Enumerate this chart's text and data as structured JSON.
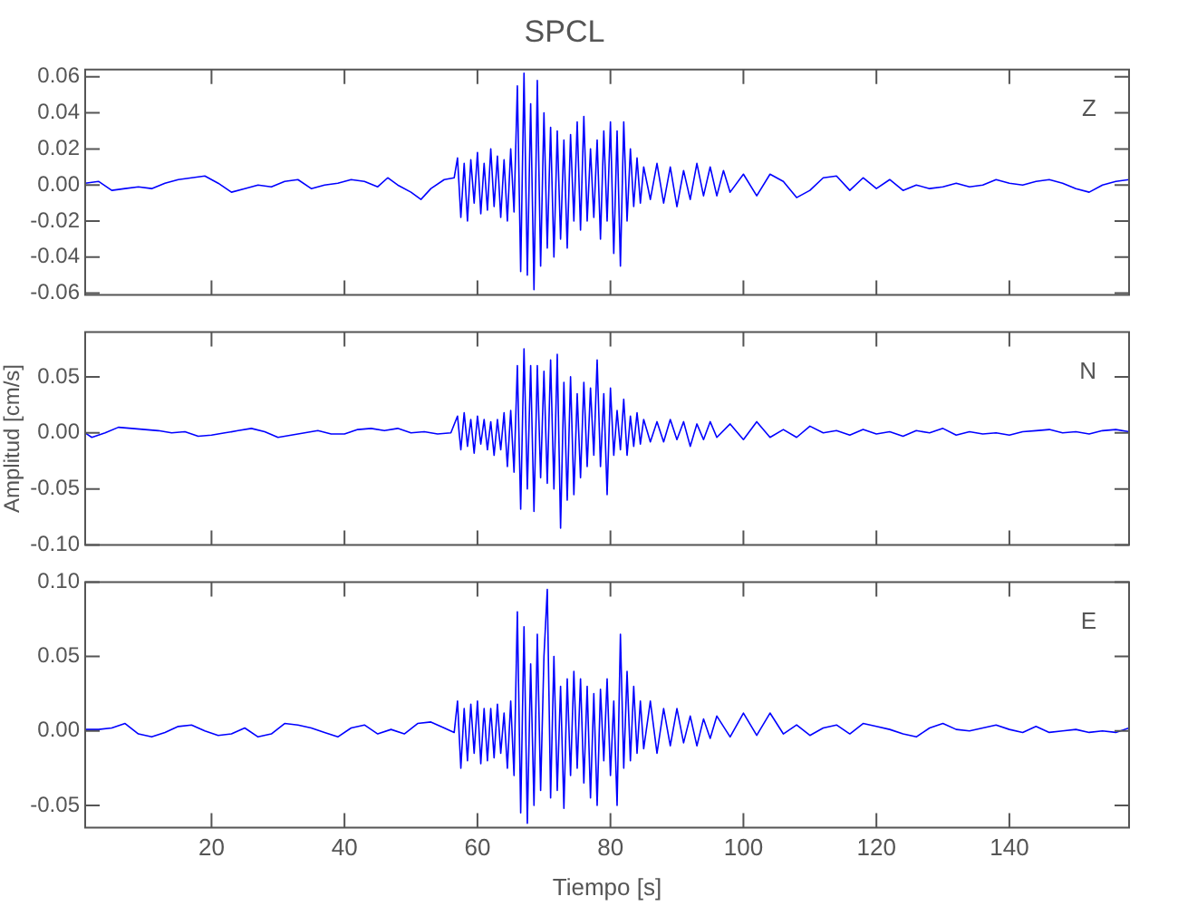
{
  "chart_data": [
    {
      "type": "line",
      "title": "SPCL",
      "annotations": [
        "Z"
      ],
      "tick_labels": "y",
      "marker": "none",
      "xlim": [
        1,
        158
      ],
      "xticks": [
        20,
        40,
        60,
        80,
        100,
        120,
        140
      ],
      "ylim": [
        -0.061,
        0.064
      ],
      "yticks": [
        -0.06,
        -0.04,
        -0.02,
        {
          "value": 0,
          "label": "0.00"
        },
        0.02,
        0.04,
        0.06
      ],
      "x": [
        1,
        3,
        5,
        7,
        9,
        11,
        13,
        15,
        17,
        19,
        21,
        23,
        25,
        27,
        29,
        31,
        33,
        35,
        37,
        39,
        41,
        43,
        45,
        46.5,
        48,
        50,
        51.5,
        53,
        55,
        56.5,
        57,
        57.5,
        58,
        58.5,
        59,
        59.5,
        60,
        60.5,
        61,
        61.5,
        62,
        62.5,
        63,
        63.5,
        64,
        64.5,
        65,
        65.5,
        66,
        66.5,
        67,
        67.5,
        68,
        68.5,
        69,
        69.5,
        70,
        70.5,
        71,
        71.5,
        72,
        72.5,
        73,
        73.5,
        74,
        74.5,
        75,
        75.5,
        76,
        76.5,
        77,
        77.5,
        78,
        78.5,
        79,
        79.5,
        80,
        80.5,
        81,
        81.5,
        82,
        82.5,
        83,
        83.5,
        84,
        84.5,
        85,
        86,
        87,
        88,
        89,
        90,
        91,
        92,
        93,
        94,
        95,
        96,
        97,
        98,
        100,
        102,
        104,
        106,
        108,
        110,
        112,
        114,
        116,
        118,
        120,
        122,
        124,
        126,
        128,
        130,
        132,
        134,
        136,
        138,
        140,
        142,
        144,
        146,
        148,
        150,
        152,
        154,
        156,
        158
      ],
      "series": [
        {
          "color": "#0000ff",
          "values": [
            0.001,
            0.002,
            -0.003,
            -0.002,
            -0.001,
            -0.002,
            0.001,
            0.003,
            0.004,
            0.005,
            0.001,
            -0.004,
            -0.002,
            0.0,
            -0.001,
            0.002,
            0.003,
            -0.002,
            0.0,
            0.001,
            0.003,
            0.002,
            -0.001,
            0.004,
            0.0,
            -0.004,
            -0.008,
            -0.002,
            0.003,
            0.004,
            0.015,
            -0.018,
            0.012,
            -0.02,
            0.014,
            -0.01,
            0.018,
            -0.016,
            0.012,
            -0.014,
            0.02,
            -0.012,
            0.016,
            -0.018,
            0.014,
            -0.02,
            0.02,
            -0.015,
            0.055,
            -0.048,
            0.062,
            -0.05,
            0.045,
            -0.058,
            0.058,
            -0.045,
            0.04,
            -0.035,
            0.032,
            -0.04,
            0.03,
            -0.03,
            0.025,
            -0.035,
            0.028,
            -0.02,
            0.035,
            -0.025,
            0.038,
            -0.02,
            0.02,
            -0.018,
            0.025,
            -0.03,
            0.03,
            -0.02,
            0.035,
            -0.038,
            0.03,
            -0.045,
            0.035,
            -0.02,
            0.02,
            -0.012,
            0.015,
            -0.01,
            0.01,
            -0.008,
            0.012,
            -0.01,
            0.01,
            -0.012,
            0.008,
            -0.008,
            0.012,
            -0.006,
            0.01,
            -0.006,
            0.008,
            -0.004,
            0.006,
            -0.006,
            0.006,
            0.002,
            -0.007,
            -0.003,
            0.004,
            0.005,
            -0.003,
            0.004,
            -0.002,
            0.003,
            -0.003,
            0.0,
            -0.002,
            -0.001,
            0.001,
            -0.001,
            0.0,
            0.003,
            0.001,
            0.0,
            0.002,
            0.003,
            0.001,
            -0.002,
            -0.004,
            0.0,
            0.002,
            0.003
          ]
        }
      ]
    },
    {
      "type": "line",
      "ylabel": "Amplitud [cm/s]",
      "annotations": [
        "N"
      ],
      "tick_labels": "y",
      "marker": "none",
      "xlim": [
        1,
        158
      ],
      "xticks": [
        20,
        40,
        60,
        80,
        100,
        120,
        140
      ],
      "ylim": [
        -0.1,
        0.09
      ],
      "yticks": [
        {
          "value": -0.1,
          "label": "-0.10"
        },
        -0.05,
        {
          "value": 0,
          "label": "0.00"
        },
        0.05
      ],
      "x": [
        1,
        2,
        4,
        6,
        8,
        10,
        12,
        14,
        16,
        18,
        20,
        22,
        24,
        26,
        28,
        30,
        32,
        34,
        36,
        38,
        40,
        42,
        44,
        46,
        48,
        50,
        52,
        54,
        56,
        57,
        57.5,
        58,
        58.5,
        59,
        59.5,
        60,
        60.5,
        61,
        61.5,
        62,
        62.5,
        63,
        63.5,
        64,
        64.5,
        65,
        65.5,
        66,
        66.5,
        67,
        67.5,
        68,
        68.5,
        69,
        69.5,
        70,
        70.5,
        71,
        71.5,
        72,
        72.5,
        73,
        73.5,
        74,
        74.5,
        75,
        75.5,
        76,
        76.5,
        77,
        77.5,
        78,
        78.5,
        79,
        79.5,
        80,
        80.5,
        81,
        81.5,
        82,
        82.5,
        83,
        83.5,
        84,
        84.5,
        85,
        86,
        87,
        88,
        89,
        90,
        91,
        92,
        93,
        94,
        95,
        96,
        98,
        100,
        102,
        104,
        106,
        108,
        110,
        112,
        114,
        116,
        118,
        120,
        122,
        124,
        126,
        128,
        130,
        132,
        134,
        136,
        138,
        140,
        142,
        144,
        146,
        148,
        150,
        152,
        154,
        156,
        158
      ],
      "series": [
        {
          "color": "#0000ff",
          "values": [
            0,
            -0.004,
            0.0,
            0.005,
            0.004,
            0.003,
            0.002,
            0.0,
            0.001,
            -0.003,
            -0.002,
            0.0,
            0.002,
            0.004,
            0.001,
            -0.004,
            -0.002,
            0.0,
            0.002,
            -0.001,
            -0.001,
            0.003,
            0.004,
            0.002,
            0.004,
            0.0,
            0.001,
            -0.001,
            0.0,
            0.015,
            -0.015,
            0.018,
            -0.012,
            0.012,
            -0.018,
            0.015,
            -0.01,
            0.012,
            -0.015,
            0.01,
            -0.02,
            0.012,
            -0.015,
            0.018,
            -0.03,
            0.02,
            -0.035,
            0.06,
            -0.068,
            0.075,
            -0.05,
            0.06,
            -0.07,
            0.06,
            -0.04,
            0.055,
            -0.045,
            0.065,
            -0.05,
            0.07,
            -0.085,
            0.045,
            -0.06,
            0.05,
            -0.055,
            0.035,
            -0.04,
            0.045,
            -0.03,
            0.04,
            -0.02,
            0.065,
            -0.03,
            0.035,
            -0.055,
            0.04,
            -0.02,
            0.02,
            -0.015,
            0.03,
            -0.02,
            0.015,
            -0.012,
            0.018,
            -0.01,
            0.012,
            -0.008,
            0.01,
            -0.008,
            0.012,
            -0.006,
            0.01,
            -0.012,
            0.008,
            -0.006,
            0.01,
            -0.004,
            0.008,
            -0.006,
            0.01,
            -0.004,
            0.003,
            -0.004,
            0.006,
            0.0,
            0.002,
            -0.002,
            0.003,
            -0.001,
            0.001,
            -0.003,
            0.002,
            0.0,
            0.004,
            -0.002,
            0.001,
            -0.001,
            0.0,
            -0.002,
            0.001,
            0.002,
            0.003,
            0.0,
            0.001,
            -0.001,
            0.002,
            0.003,
            0.001
          ]
        }
      ]
    },
    {
      "type": "line",
      "xlabel": "Tiempo [s]",
      "annotations": [
        "E"
      ],
      "marker": "none",
      "xlim": [
        1,
        158
      ],
      "xticks": [
        20,
        40,
        60,
        80,
        100,
        120,
        140
      ],
      "ylim": [
        -0.065,
        0.1
      ],
      "yticks": [
        -0.05,
        {
          "value": 0,
          "label": "0.00"
        },
        0.05,
        {
          "value": 0.1,
          "label": "0.10"
        }
      ],
      "x": [
        1,
        3,
        5,
        7,
        9,
        11,
        13,
        15,
        17,
        19,
        21,
        23,
        25,
        27,
        29,
        31,
        33,
        35,
        37,
        39,
        41,
        43,
        45,
        47,
        49,
        51,
        53,
        55,
        56.5,
        57,
        57.5,
        58,
        58.5,
        59,
        59.5,
        60,
        60.5,
        61,
        61.5,
        62,
        62.5,
        63,
        63.5,
        64,
        64.5,
        65,
        65.5,
        66,
        66.5,
        67,
        67.5,
        68,
        68.5,
        69,
        69.5,
        70,
        70.5,
        71,
        71.5,
        72,
        72.5,
        73,
        73.5,
        74,
        74.5,
        75,
        75.5,
        76,
        76.5,
        77,
        77.5,
        78,
        78.5,
        79,
        79.5,
        80,
        80.5,
        81,
        81.5,
        82,
        82.5,
        83,
        83.5,
        84,
        84.5,
        85,
        86,
        87,
        88,
        89,
        90,
        91,
        92,
        93,
        94,
        95,
        96,
        98,
        100,
        102,
        104,
        106,
        108,
        110,
        112,
        114,
        116,
        118,
        120,
        122,
        124,
        126,
        128,
        130,
        132,
        134,
        136,
        138,
        140,
        142,
        144,
        146,
        148,
        150,
        152,
        154,
        156,
        158
      ],
      "series": [
        {
          "color": "#0000ff",
          "values": [
            0.001,
            0.001,
            0.002,
            0.005,
            -0.002,
            -0.004,
            -0.001,
            0.003,
            0.004,
            0.0,
            -0.003,
            -0.002,
            0.002,
            -0.004,
            -0.002,
            0.005,
            0.004,
            0.002,
            -0.001,
            -0.004,
            0.002,
            0.004,
            -0.002,
            0.001,
            -0.002,
            0.005,
            0.006,
            0.002,
            -0.001,
            0.02,
            -0.025,
            0.015,
            -0.02,
            0.018,
            -0.015,
            0.02,
            -0.022,
            0.015,
            -0.02,
            0.015,
            -0.018,
            0.018,
            -0.015,
            0.012,
            -0.025,
            0.02,
            -0.03,
            0.08,
            -0.055,
            0.07,
            -0.062,
            0.045,
            -0.05,
            0.065,
            -0.04,
            0.05,
            0.095,
            -0.045,
            0.05,
            -0.04,
            0.03,
            -0.052,
            0.035,
            -0.03,
            0.04,
            -0.025,
            0.035,
            -0.035,
            0.03,
            -0.045,
            0.025,
            -0.05,
            0.028,
            -0.02,
            0.035,
            -0.03,
            0.02,
            -0.05,
            0.065,
            -0.025,
            0.04,
            -0.02,
            0.03,
            -0.015,
            0.02,
            -0.012,
            0.02,
            -0.015,
            0.015,
            -0.01,
            0.015,
            -0.008,
            0.01,
            -0.01,
            0.008,
            -0.005,
            0.01,
            -0.004,
            0.012,
            -0.003,
            0.012,
            -0.002,
            0.004,
            -0.003,
            0.002,
            0.004,
            -0.002,
            0.005,
            0.003,
            0.001,
            -0.002,
            -0.004,
            0.002,
            0.005,
            0.001,
            0.0,
            0.002,
            0.004,
            0.001,
            -0.001,
            0.003,
            -0.001,
            0.0,
            0.001,
            -0.001,
            0.0,
            -0.001,
            0.002
          ]
        }
      ]
    }
  ]
}
